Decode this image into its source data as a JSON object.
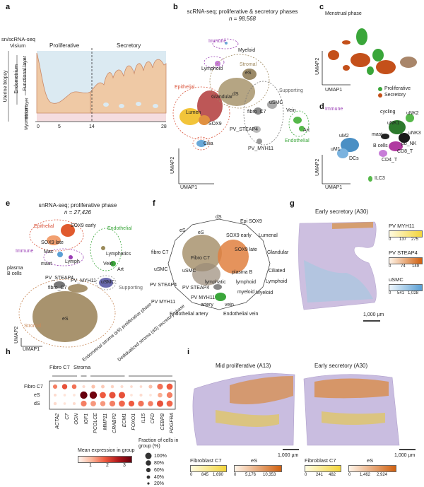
{
  "panels": {
    "a": {
      "letter": "a",
      "col_seq": "sn/scRNA-seq",
      "col_visium": "Visium",
      "phase_prolif": "Proliferative",
      "phase_secret": "Secretory",
      "rot_uterine": "Uterine biopsy",
      "rot_endo": "Endometrium",
      "rot_func": "Functional layer",
      "rot_basal": "Basal layer",
      "rot_myo": "Myometrium",
      "ticks": [
        "0",
        "5",
        "14",
        "28"
      ]
    },
    "b": {
      "letter": "b",
      "title": "scRNA-seq; proliferative & secretory phases",
      "n": "n = 98,568",
      "labels": {
        "immune": "Immune",
        "myeloid": "Myeloid",
        "lymphoid": "Lymphoid",
        "stromal": "Stromal",
        "epithelial": "Epithelial",
        "glandular": "Glandular",
        "lumen": "Lumen",
        "sox9": "SOX9",
        "cilia": "Cilia",
        "es": "eS",
        "ds": "dS",
        "fibro": "fibro_C7",
        "usmc": "uSMC",
        "supporting": "Supporting",
        "pv_steap4": "PV_STEAP4",
        "pv_myh11": "PV_MYH11",
        "vein": "Vein",
        "art": "Art",
        "endothelial": "Endothelial"
      },
      "xaxis": "UMAP1",
      "yaxis": "UMAP2"
    },
    "c": {
      "letter": "c",
      "title": "Menstrual phase",
      "xaxis": "UMAP1",
      "yaxis": "UMAP2",
      "legend": [
        "Proliferative",
        "Secretory"
      ],
      "legend_colors": [
        "#3aa63a",
        "#c4501a"
      ]
    },
    "d": {
      "letter": "d",
      "labels": {
        "immune": "Immune",
        "cycling": "cycling",
        "unk2": "uNK2",
        "unk1": "uNK1",
        "unk3": "uNK3",
        "mast": "mast",
        "pbnk": "pb_NK",
        "bcells": "B cells",
        "cd8": "CD8_T",
        "cd4": "CD4_T",
        "um2": "uM2",
        "um1": "uM1",
        "dcs": "DCs",
        "ilc3": "ILC3"
      },
      "xaxis": "UMAP1",
      "yaxis": "UMAP2"
    },
    "e": {
      "letter": "e",
      "title": "snRNA-seq; proliferative phase",
      "n": "n = 27,426",
      "labels": {
        "epithelial": "Epithelial",
        "sox9early": "SOX9 early",
        "sox9late": "SOX9 late",
        "immune": "Immune",
        "mac": "Mac",
        "lymph": "Lymph",
        "mast": "mast",
        "plasma": "plasma",
        "bcells": "B cells",
        "endothelial": "Endothelial",
        "lymphatics": "Lymphatics",
        "vein": "Vein",
        "art": "Art",
        "pv_steap4": "PV_STEAP4",
        "pv_myh11": "PV_MYH11",
        "fibro": "fibro_C7",
        "usmc": "uSMC",
        "supporting": "Supporting",
        "es": "eS",
        "stromal": "Stromal"
      },
      "xaxis": "UMAP1",
      "yaxis": "UMAP2"
    },
    "f": {
      "letter": "f",
      "labels": [
        "dS",
        "Epi SOX9",
        "Lumenal",
        "Glandular",
        "Ciliated",
        "Lymphoid",
        "Myeloid",
        "Endothelial vein",
        "Endothelial artery",
        "PV MYH11",
        "PV STEAP4",
        "uSMC",
        "fibro C7",
        "eS"
      ],
      "inner": [
        "eS",
        "SOX9 early",
        "SOX9 late",
        "Fibro C7",
        "uSMC",
        "PV STEAP4",
        "PV MYH11",
        "lymphatic",
        "artery",
        "vein",
        "plasma B",
        "lymphoid",
        "myeloid",
        "dS"
      ]
    },
    "g": {
      "letter": "g",
      "title": "Early secretory (A30)",
      "scalebar": "1,000 µm",
      "bars": [
        {
          "name": "PV MYH11",
          "ticks": [
            "0",
            "137",
            "275"
          ],
          "grad": "linear-gradient(90deg,#fffbe0,#f2d43a)"
        },
        {
          "name": "PV STEAP4",
          "ticks": [
            "0",
            "74",
            "149"
          ],
          "grad": "linear-gradient(90deg,#fff4e8,#d0600f)"
        },
        {
          "name": "uSMC",
          "ticks": [
            "0",
            "541",
            "1,028"
          ],
          "grad": "linear-gradient(90deg,#eef6fc,#5a9fd4)"
        }
      ]
    },
    "h": {
      "letter": "h",
      "groups": [
        "Fibro C7",
        "Stroma",
        "Endometrial stroma (eS) proliferative phase",
        "Dedidualized stroma (dS) secretory phase"
      ],
      "rows": [
        "Fibro C7",
        "eS",
        "dS"
      ],
      "genes": [
        "ACTA2",
        "C7",
        "OGN",
        "IGF1",
        "PCOLCE",
        "MMP11",
        "CRABP2",
        "ECM1",
        "FOXO1",
        "IL15",
        "CFD",
        "CEBPB",
        "PDGFRA"
      ],
      "legend_color_title": "Mean expression in group",
      "legend_color_ticks": [
        "1",
        "2",
        "3"
      ],
      "legend_size_title": "Fraction of cells in group (%)",
      "legend_size_vals": [
        "100%",
        "80%",
        "60%",
        "40%",
        "20%"
      ]
    },
    "i": {
      "letter": "i",
      "title_left": "Mid proliferative (A13)",
      "title_right": "Early secretory (A30)",
      "scalebar": "1,000 µm",
      "bars": [
        {
          "name": "Fibroblast C7",
          "ticks": [
            "0",
            "845",
            "1,690"
          ],
          "grad": "linear-gradient(90deg,#fffbe0,#f2d43a)"
        },
        {
          "name": "eS",
          "ticks": [
            "0",
            "5,176",
            "10,353"
          ],
          "grad": "linear-gradient(90deg,#fff4e8,#d0600f)"
        },
        {
          "name": "Fibroblast C7",
          "ticks": [
            "0",
            "241",
            "482"
          ],
          "grad": "linear-gradient(90deg,#fffbe0,#f2d43a)"
        },
        {
          "name": "eS",
          "ticks": [
            "0",
            "1,462",
            "2,924"
          ],
          "grad": "linear-gradient(90deg,#fff4e8,#d0600f)"
        }
      ]
    }
  },
  "dotplot": {
    "mean": [
      [
        1.2,
        1.6,
        1.3,
        0.3,
        0.6,
        0.5,
        0.4,
        0.3,
        0.3,
        0.3,
        0.6,
        1.3,
        1.5
      ],
      [
        0.3,
        0.2,
        0.2,
        3.0,
        2.9,
        1.5,
        1.6,
        1.6,
        0.2,
        0.3,
        0.2,
        0.8,
        1.2
      ],
      [
        0.3,
        0.2,
        0.3,
        1.2,
        1.0,
        1.0,
        1.2,
        1.4,
        1.5,
        1.3,
        1.2,
        1.6,
        1.4
      ]
    ],
    "frac": [
      [
        45,
        60,
        50,
        20,
        35,
        30,
        25,
        20,
        15,
        15,
        35,
        70,
        75
      ],
      [
        20,
        15,
        15,
        95,
        95,
        75,
        80,
        80,
        15,
        20,
        15,
        50,
        70
      ],
      [
        25,
        15,
        20,
        70,
        65,
        60,
        70,
        75,
        70,
        70,
        60,
        80,
        75
      ]
    ]
  }
}
